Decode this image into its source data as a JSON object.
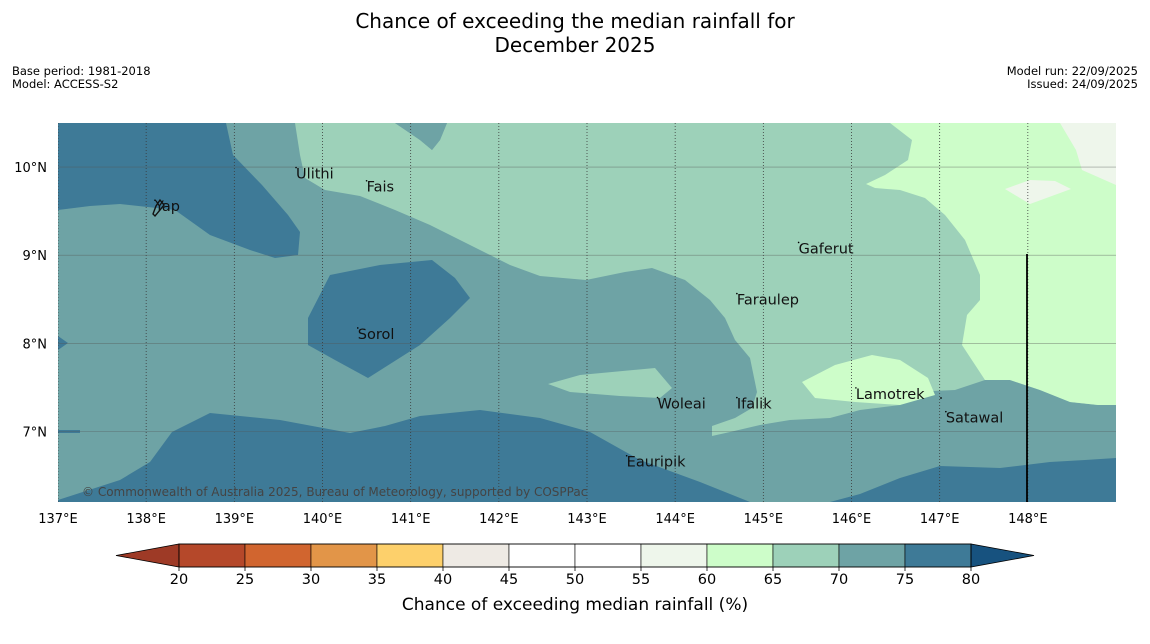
{
  "title_line1": "Chance of exceeding the median rainfall for",
  "title_line2": "December 2025",
  "meta_left": [
    "Base period: 1981-2018",
    "Model: ACCESS-S2"
  ],
  "meta_right": [
    "Model run: 22/09/2025",
    "Issued: 24/09/2025"
  ],
  "copyright": "© Commonwealth of Australia 2025, Bureau of Meteorology, supported by COSPPac",
  "map": {
    "lon_range": [
      137,
      149
    ],
    "lat_range": [
      6.2,
      10.5
    ],
    "lon_ticks": [
      {
        "value": 137,
        "label": "137°E"
      },
      {
        "value": 138,
        "label": "138°E"
      },
      {
        "value": 139,
        "label": "139°E"
      },
      {
        "value": 140,
        "label": "140°E"
      },
      {
        "value": 141,
        "label": "141°E"
      },
      {
        "value": 142,
        "label": "142°E"
      },
      {
        "value": 143,
        "label": "143°E"
      },
      {
        "value": 144,
        "label": "144°E"
      },
      {
        "value": 145,
        "label": "145°E"
      },
      {
        "value": 146,
        "label": "146°E"
      },
      {
        "value": 147,
        "label": "147°E"
      },
      {
        "value": 148,
        "label": "148°E"
      }
    ],
    "lat_ticks": [
      {
        "value": 10,
        "label": "10°N"
      },
      {
        "value": 9,
        "label": "9°N"
      },
      {
        "value": 8,
        "label": "8°N"
      },
      {
        "value": 7,
        "label": "7°N"
      }
    ],
    "places": [
      {
        "name": "Ulithi",
        "lon": 139.7,
        "lat": 9.87
      },
      {
        "name": "Fais",
        "lon": 140.5,
        "lat": 9.72
      },
      {
        "name": "Yap",
        "lon": 138.1,
        "lat": 9.5
      },
      {
        "name": "Gaferut",
        "lon": 145.4,
        "lat": 9.02
      },
      {
        "name": "Faraulep",
        "lon": 144.7,
        "lat": 8.44
      },
      {
        "name": "Sorol",
        "lon": 140.4,
        "lat": 8.05
      },
      {
        "name": "Lamotrek",
        "lon": 146.05,
        "lat": 7.37
      },
      {
        "name": "Woleai",
        "lon": 143.8,
        "lat": 7.26
      },
      {
        "name": "Ifalik",
        "lon": 144.7,
        "lat": 7.26
      },
      {
        "name": "Satawal",
        "lon": 147.07,
        "lat": 7.1
      },
      {
        "name": "Eauripik",
        "lon": 143.45,
        "lat": 6.6
      }
    ]
  },
  "colorbar": {
    "ticks": [
      20,
      25,
      30,
      35,
      40,
      45,
      50,
      55,
      60,
      65,
      70,
      75,
      80
    ],
    "colors": [
      "#b5482a",
      "#d1652f",
      "#e29548",
      "#fdd06b",
      "#eeeae4",
      "#ffffff",
      "#ffffff",
      "#eef6eb",
      "#cdfdc9",
      "#9dd1b9",
      "#6ea3a5",
      "#3e7a97"
    ],
    "under_color": "#9e3a26",
    "over_color": "#17527f",
    "label": "Chance of exceeding median rainfall (%)"
  },
  "category_colors": {
    "c60_65": "#cdfdc9",
    "c65_70": "#9dd1b9",
    "c70_75": "#6ea3a5",
    "c75_80": "#3e7a97",
    "c55_60": "#eef6eb"
  }
}
